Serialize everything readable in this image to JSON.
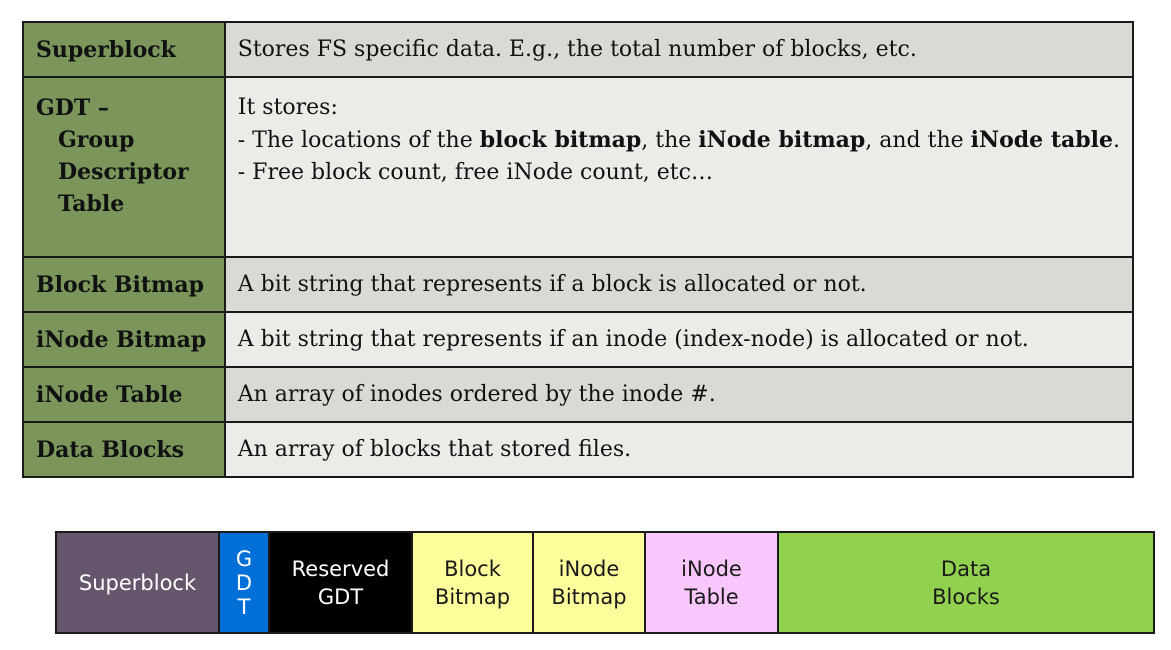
{
  "table": {
    "rows": [
      {
        "name": "Superblock",
        "desc": "Stores FS specific data. E.g., the total number of blocks, etc."
      },
      {
        "name_lines": [
          "GDT –",
          "Group",
          "Descriptor",
          "Table"
        ],
        "desc_intro": "It stores:",
        "desc_line1_parts": [
          "- The locations of the ",
          "block bitmap",
          ", the ",
          "iNode bitmap",
          ", and the ",
          "iNode table",
          "."
        ],
        "desc_line2": "- Free block count, free iNode count, etc…"
      },
      {
        "name": "Block Bitmap",
        "desc": "A bit string that represents if a block is allocated or not."
      },
      {
        "name": "iNode Bitmap",
        "desc": "A bit string that represents if an inode (index-node) is allocated or not."
      },
      {
        "name": "iNode Table",
        "desc": "An array of inodes ordered by the inode #."
      },
      {
        "name": "Data Blocks",
        "desc": "An array of blocks that stored files."
      }
    ]
  },
  "layout_bar": {
    "segments": [
      {
        "lines": [
          "Superblock"
        ],
        "color": "#65566e"
      },
      {
        "lines": [
          "G",
          "D",
          "T"
        ],
        "color": "#0070d8"
      },
      {
        "lines": [
          "Reserved",
          "GDT"
        ],
        "color": "#000000"
      },
      {
        "lines": [
          "Block",
          "Bitmap"
        ],
        "color": "#fdfd9c"
      },
      {
        "lines": [
          "iNode",
          "Bitmap"
        ],
        "color": "#fdfd9c"
      },
      {
        "lines": [
          "iNode",
          "Table"
        ],
        "color": "#f9c7fb"
      },
      {
        "lines": [
          "Data",
          "Blocks"
        ],
        "color": "#92d14f"
      }
    ]
  },
  "colors": {
    "name_cell": "#7b955a",
    "desc_dark": "#d7dbd3",
    "desc_light": "#eaede7"
  }
}
